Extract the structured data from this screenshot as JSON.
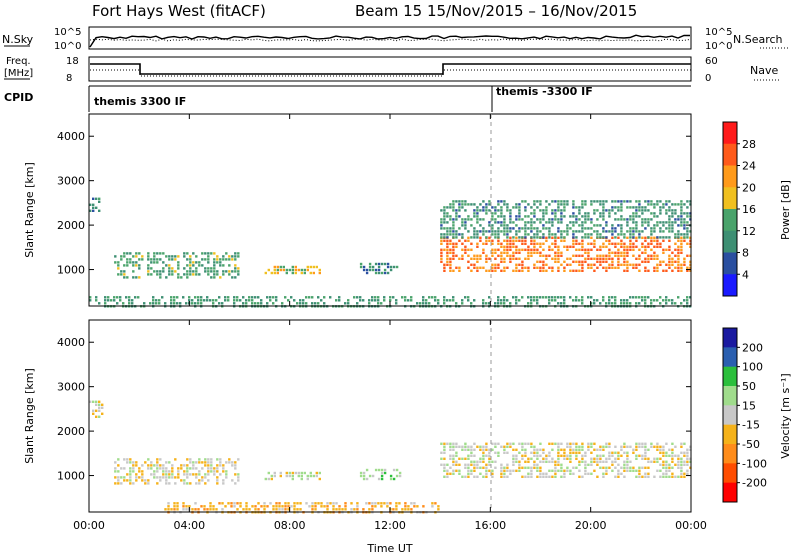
{
  "header": {
    "title": "Fort Hays West (fitACF)",
    "subtitle": "Beam 15  15/Nov/2015 – 16/Nov/2015"
  },
  "top_panels": {
    "nsky": {
      "label": "N.Sky",
      "ticks": [
        "10^5",
        "10^0"
      ],
      "right_label": "N.Search",
      "right_ticks": [
        "10^5",
        "10^0"
      ]
    },
    "freq": {
      "label_line1": "Freq.",
      "label_line2": "[MHz]",
      "ticks": [
        "18",
        "8"
      ],
      "right_label": "Nave",
      "right_ticks": [
        "60",
        "0"
      ]
    },
    "cpid": {
      "label": "CPID",
      "entries": [
        "themis 3300 IF",
        "themis -3300 IF"
      ]
    }
  },
  "colors": {
    "power_scale": [
      "#1a1aff",
      "#2a4fa0",
      "#3d8f73",
      "#4aa36b",
      "#f0c020",
      "#ff9a1a",
      "#ff5a1a",
      "#ff1a1a"
    ],
    "velocity_scale": [
      "#ff0000",
      "#ff4d00",
      "#ff8c1a",
      "#f5b21a",
      "#c8c8c8",
      "#a0dc8c",
      "#2bbf3c",
      "#2a5fb0",
      "#1a1aa0"
    ]
  },
  "chart_data": [
    {
      "type": "heatmap",
      "name": "power",
      "xlabel": "",
      "ylabel": "Slant Range [km]",
      "yticks": [
        "1000",
        "2000",
        "3000",
        "4000"
      ],
      "ylim": [
        180,
        4500
      ],
      "colorbar": {
        "label": "Power [dB]",
        "ticks": [
          "4",
          "8",
          "12",
          "16",
          "20",
          "24",
          "28"
        ],
        "range": [
          0,
          32
        ]
      },
      "regions": [
        {
          "t0": 0.0,
          "t1": 0.4,
          "r0": 2350,
          "r1": 2700,
          "level": 10
        },
        {
          "t0": 1.0,
          "t1": 6.0,
          "r0": 850,
          "r1": 1450,
          "level": 13
        },
        {
          "t0": 7.0,
          "t1": 9.2,
          "r0": 950,
          "r1": 1150,
          "level": 18
        },
        {
          "t0": 10.8,
          "t1": 12.4,
          "r0": 950,
          "r1": 1200,
          "level": 10
        },
        {
          "t0": 14.0,
          "t1": 24.0,
          "r0": 1000,
          "r1": 1750,
          "level": 24
        },
        {
          "t0": 14.0,
          "t1": 24.0,
          "r0": 1750,
          "r1": 2600,
          "level": 11
        },
        {
          "t0": 0.0,
          "t1": 24.0,
          "r0": 200,
          "r1": 450,
          "level": 12
        }
      ]
    },
    {
      "type": "heatmap",
      "name": "velocity",
      "xlabel": "Time UT",
      "ylabel": "Slant Range [km]",
      "xticks": [
        "00:00",
        "04:00",
        "08:00",
        "12:00",
        "16:00",
        "20:00",
        "00:00"
      ],
      "xlim": [
        0,
        24
      ],
      "yticks": [
        "1000",
        "2000",
        "3000",
        "4000"
      ],
      "ylim": [
        180,
        4500
      ],
      "colorbar": {
        "label": "Velocity [m s⁻¹]",
        "ticks": [
          "200",
          "100",
          "50",
          "15",
          "-15",
          "-50",
          "-100",
          "-200"
        ],
        "range": [
          -250,
          250
        ]
      },
      "regions": [
        {
          "t0": 0.0,
          "t1": 0.5,
          "r0": 2350,
          "r1": 2700,
          "level": 0
        },
        {
          "t0": 1.0,
          "t1": 6.0,
          "r0": 850,
          "r1": 1450,
          "level": -5
        },
        {
          "t0": 7.0,
          "t1": 9.2,
          "r0": 950,
          "r1": 1150,
          "level": 20
        },
        {
          "t0": 10.8,
          "t1": 12.4,
          "r0": 950,
          "r1": 1200,
          "level": 40
        },
        {
          "t0": 14.0,
          "t1": 24.0,
          "r0": 1000,
          "r1": 1750,
          "level": 0
        },
        {
          "t0": 3.0,
          "t1": 14.0,
          "r0": 200,
          "r1": 450,
          "level": -60
        }
      ]
    }
  ]
}
